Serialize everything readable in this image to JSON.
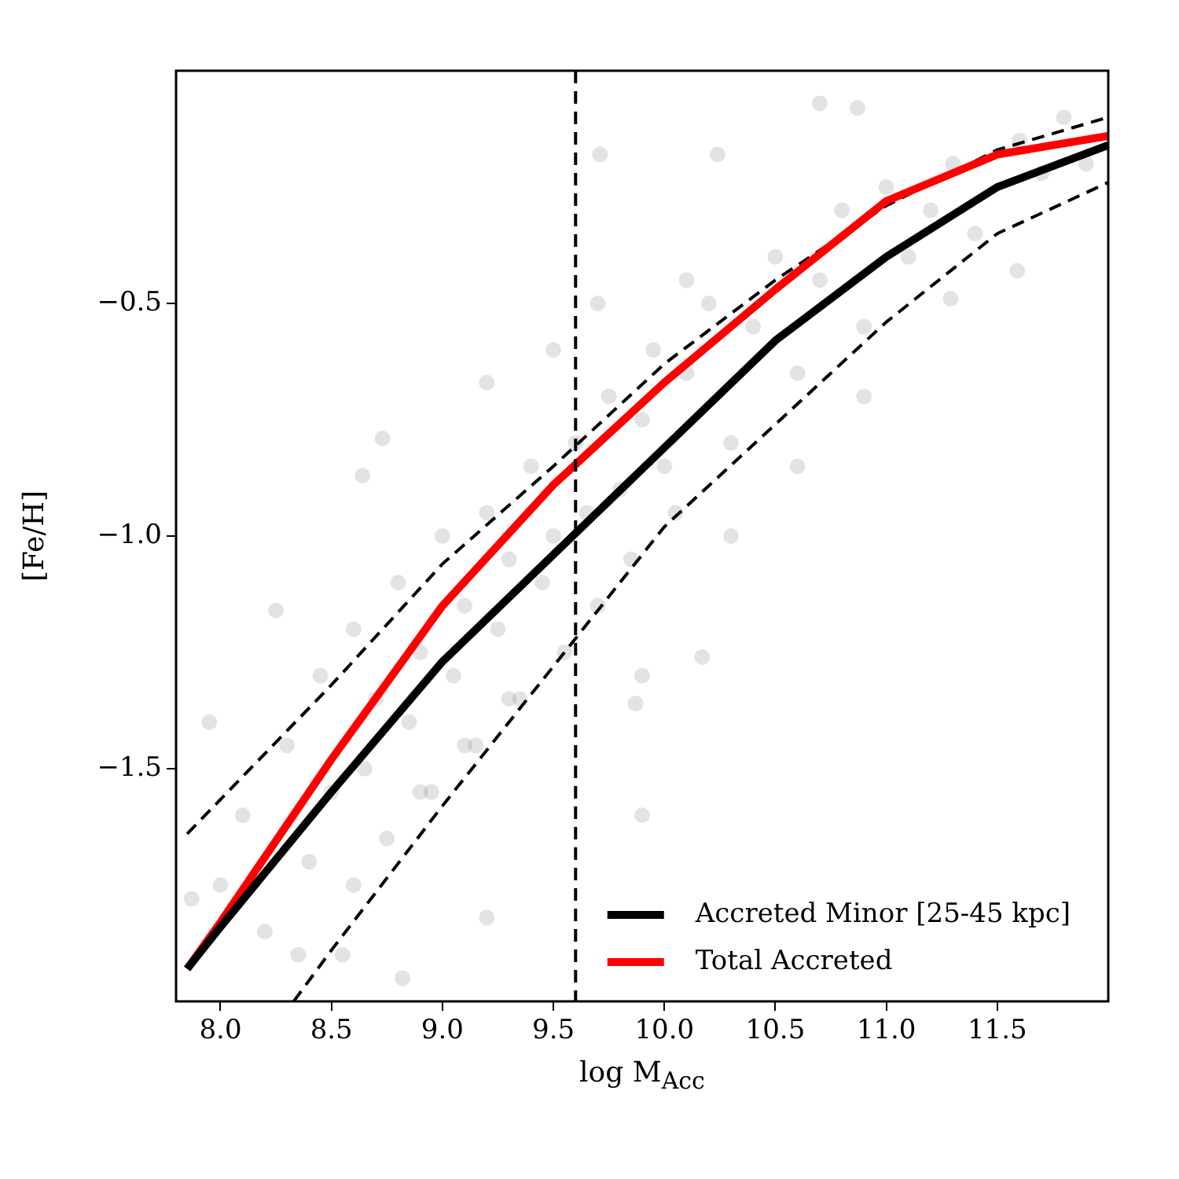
{
  "chart_data": {
    "type": "line",
    "xlabel": "log M$_{Acc}$",
    "ylabel": "[Fe/H]",
    "xlim": [
      7.8,
      12.0
    ],
    "ylim": [
      -2.0,
      0.0
    ],
    "xticks": [
      {
        "value": 8.0,
        "label": "8.0"
      },
      {
        "value": 8.5,
        "label": "8.5"
      },
      {
        "value": 9.0,
        "label": "9.0"
      },
      {
        "value": 9.5,
        "label": "9.5"
      },
      {
        "value": 10.0,
        "label": "10.0"
      },
      {
        "value": 10.5,
        "label": "10.5"
      },
      {
        "value": 11.0,
        "label": "11.0"
      },
      {
        "value": 11.5,
        "label": "11.5"
      }
    ],
    "yticks": [
      {
        "value": -1.5,
        "label": "−1.5"
      },
      {
        "value": -1.0,
        "label": "−1.0"
      },
      {
        "value": -0.5,
        "label": "−0.5"
      }
    ],
    "grid": false,
    "legend": "bottom right",
    "marker": "none",
    "series": [
      {
        "type": "scatter",
        "color": "#808080",
        "marker": "circle",
        "x": [
          9.71,
          8.73,
          8.64,
          9.2,
          10.7,
          10.87,
          10.24,
          11.59,
          11.29,
          9.9,
          9.87,
          10.17,
          7.95,
          8.25,
          7.87,
          9.2,
          8.82,
          8.0,
          8.1,
          8.2,
          8.3,
          8.4,
          8.45,
          8.5,
          8.55,
          8.6,
          8.65,
          8.7,
          8.75,
          8.8,
          8.85,
          8.9,
          8.95,
          9.0,
          9.05,
          9.1,
          9.15,
          9.2,
          9.25,
          9.3,
          9.35,
          9.4,
          9.45,
          9.5,
          9.55,
          9.6,
          9.65,
          9.7,
          9.75,
          9.8,
          9.85,
          9.9,
          9.95,
          10.0,
          10.05,
          10.1,
          10.2,
          10.3,
          10.4,
          10.5,
          10.6,
          10.7,
          10.8,
          10.9,
          11.0,
          11.1,
          11.2,
          11.3,
          11.4,
          11.6,
          11.7,
          11.8,
          11.9,
          8.35,
          8.6,
          8.9,
          9.1,
          9.3,
          9.5,
          9.7,
          9.9,
          10.1,
          10.3,
          10.6,
          10.9
        ],
        "values": [
          -0.18,
          -0.79,
          -0.87,
          -0.67,
          -0.07,
          -0.08,
          -0.18,
          -0.43,
          -0.49,
          -1.6,
          -1.36,
          -1.26,
          -1.4,
          -1.16,
          -1.78,
          -1.82,
          -1.95,
          -1.75,
          -1.6,
          -1.85,
          -1.45,
          -1.7,
          -1.3,
          -1.55,
          -1.9,
          -1.2,
          -1.5,
          -1.35,
          -1.65,
          -1.1,
          -1.4,
          -1.25,
          -1.55,
          -1.0,
          -1.3,
          -1.15,
          -1.45,
          -0.95,
          -1.2,
          -1.05,
          -1.35,
          -0.85,
          -1.1,
          -1.0,
          -1.25,
          -0.8,
          -0.95,
          -1.15,
          -0.7,
          -0.9,
          -1.05,
          -0.75,
          -0.6,
          -0.85,
          -0.95,
          -0.65,
          -0.5,
          -0.8,
          -0.55,
          -0.4,
          -0.65,
          -0.45,
          -0.3,
          -0.55,
          -0.25,
          -0.4,
          -0.3,
          -0.2,
          -0.35,
          -0.15,
          -0.22,
          -0.1,
          -0.2,
          -1.9,
          -1.75,
          -1.55,
          -1.45,
          -1.35,
          -0.6,
          -0.5,
          -1.3,
          -0.45,
          -1.0,
          -0.85,
          -0.7
        ]
      },
      {
        "name": "Accreted Minor [25-45 kpc]",
        "color": "#000000",
        "line_style": "solid",
        "x": [
          7.85,
          8.0,
          8.5,
          9.0,
          9.5,
          10.0,
          10.5,
          11.0,
          11.5,
          12.0
        ],
        "values": [
          -1.93,
          -1.84,
          -1.55,
          -1.27,
          -1.04,
          -0.81,
          -0.58,
          -0.4,
          -0.25,
          -0.16
        ]
      },
      {
        "name": "Total Accreted",
        "color": "#ff0000",
        "line_style": "solid",
        "x": [
          7.85,
          8.0,
          8.5,
          9.0,
          9.5,
          10.0,
          10.5,
          11.0,
          11.5,
          12.0
        ],
        "values": [
          -1.93,
          -1.83,
          -1.48,
          -1.15,
          -0.89,
          -0.67,
          -0.47,
          -0.28,
          -0.18,
          -0.14
        ]
      },
      {
        "color": "#000000",
        "line_style": "dashed",
        "x": [
          7.85,
          8.5,
          9.0,
          9.5,
          10.0,
          10.5,
          11.0,
          11.5,
          12.0
        ],
        "values": [
          -1.64,
          -1.32,
          -1.06,
          -0.85,
          -0.63,
          -0.45,
          -0.29,
          -0.17,
          -0.1
        ]
      },
      {
        "color": "#000000",
        "line_style": "dashed",
        "x": [
          8.33,
          8.5,
          9.0,
          9.5,
          10.0,
          10.5,
          11.0,
          11.5,
          12.0
        ],
        "values": [
          -2.0,
          -1.89,
          -1.58,
          -1.28,
          -0.98,
          -0.76,
          -0.54,
          -0.35,
          -0.24
        ]
      }
    ],
    "ref_lines": [
      {
        "axis": "x",
        "value": 9.6,
        "line_style": "dashed",
        "color": "#000000"
      }
    ]
  }
}
